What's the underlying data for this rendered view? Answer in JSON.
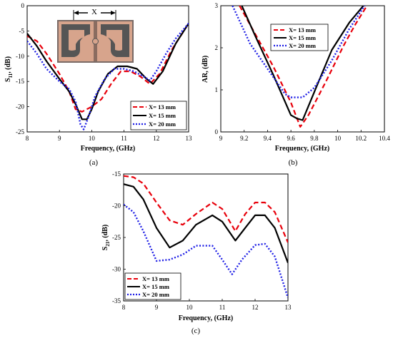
{
  "series_styles": [
    {
      "color": "#e8000b",
      "dash": "7,4",
      "width": 2.2
    },
    {
      "color": "#000000",
      "dash": "",
      "width": 2.2
    },
    {
      "color": "#1f1fe6",
      "dash": "2,2.4",
      "width": 2.4
    }
  ],
  "inset_label": "X",
  "chart_data": [
    {
      "type": "line",
      "panel": "a",
      "caption": "(a)",
      "xlabel": "Frequency, (GHz)",
      "ylabel_main": "S",
      "ylabel_sub": "11",
      "ylabel_tail": ", (dB)",
      "xlim": [
        8,
        13
      ],
      "ylim": [
        -25,
        0
      ],
      "xticks": [
        "8",
        "9",
        "10",
        "11",
        "12",
        "13"
      ],
      "yticks": [
        "-25",
        "-20",
        "-15",
        "-10",
        "-5",
        "0"
      ],
      "legend_position": "bottom-right",
      "series": [
        {
          "name": "X= 13 mm",
          "x": [
            8,
            8.3,
            8.6,
            9.0,
            9.3,
            9.5,
            9.7,
            10.0,
            10.3,
            10.6,
            10.9,
            11.2,
            11.5,
            11.8,
            12.1,
            12.5,
            13.0
          ],
          "y": [
            -6,
            -7,
            -9.5,
            -13.5,
            -17,
            -20.5,
            -21,
            -20,
            -18.5,
            -15.5,
            -13,
            -13,
            -14,
            -15.5,
            -13.5,
            -8.5,
            -3.5
          ]
        },
        {
          "name": "X= 15 mm",
          "x": [
            8,
            8.3,
            8.6,
            9.0,
            9.3,
            9.5,
            9.7,
            9.85,
            10.0,
            10.2,
            10.5,
            10.8,
            11.1,
            11.4,
            11.7,
            11.9,
            12.2,
            12.6,
            13.0
          ],
          "y": [
            -5.5,
            -8,
            -11,
            -14.5,
            -17,
            -19.5,
            -22.5,
            -22.5,
            -20.5,
            -17,
            -13.5,
            -12,
            -12,
            -12.5,
            -14.5,
            -15.5,
            -13,
            -7.5,
            -3.5
          ]
        },
        {
          "name": "X= 20 mm",
          "x": [
            8,
            8.3,
            8.6,
            9.0,
            9.3,
            9.5,
            9.65,
            9.75,
            9.9,
            10.1,
            10.4,
            10.7,
            11.0,
            11.3,
            11.6,
            11.8,
            12.0,
            12.3,
            12.6,
            13.0
          ],
          "y": [
            -7,
            -9.5,
            -12.5,
            -15,
            -16.5,
            -19,
            -23.5,
            -24.5,
            -22,
            -18,
            -14.5,
            -12.5,
            -12.5,
            -13,
            -14,
            -14.8,
            -13,
            -9.5,
            -6.5,
            -3.5
          ]
        }
      ]
    },
    {
      "type": "line",
      "panel": "b",
      "caption": "(b)",
      "xlabel": "Frequency, (GHz)",
      "ylabel": "AR, (dB)",
      "xlim": [
        9,
        10.4
      ],
      "ylim": [
        0,
        3
      ],
      "xticks": [
        "9",
        "9.2",
        "9.4",
        "9.6",
        "9.8",
        "10",
        "10.2",
        "10.4"
      ],
      "yticks": [
        "0",
        "1",
        "2",
        "3"
      ],
      "legend_position": "top-right",
      "series": [
        {
          "name": "X= 13 mm",
          "x": [
            9.16,
            9.3,
            9.45,
            9.6,
            9.68,
            9.75,
            9.9,
            10.05,
            10.15,
            10.25
          ],
          "y": [
            3,
            2.3,
            1.55,
            0.7,
            0.12,
            0.4,
            1.2,
            2.05,
            2.55,
            3
          ]
        },
        {
          "name": "X= 15 mm",
          "x": [
            9.18,
            9.3,
            9.45,
            9.6,
            9.65,
            9.7,
            9.8,
            9.95,
            10.1,
            10.22
          ],
          "y": [
            3,
            2.25,
            1.35,
            0.4,
            0.32,
            0.28,
            0.95,
            1.95,
            2.6,
            3
          ]
        },
        {
          "name": "X= 20 mm",
          "x": [
            9.1,
            9.25,
            9.4,
            9.55,
            9.6,
            9.7,
            9.8,
            9.95,
            10.1,
            10.23
          ],
          "y": [
            3,
            2.1,
            1.5,
            0.9,
            0.82,
            0.82,
            1.05,
            1.7,
            2.45,
            3
          ]
        }
      ]
    },
    {
      "type": "line",
      "panel": "c",
      "caption": "(c)",
      "xlabel": "Frequency, (GHz)",
      "ylabel_main": "S",
      "ylabel_sub": "21",
      "ylabel_tail": ", (dB)",
      "xlim": [
        8,
        13
      ],
      "ylim": [
        -35,
        -15
      ],
      "xticks": [
        "8",
        "9",
        "10",
        "11",
        "12",
        "13"
      ],
      "yticks": [
        "-35",
        "-30",
        "-25",
        "-20",
        "-15"
      ],
      "legend_position": "bottom-left",
      "series": [
        {
          "name": "X= 13 mm",
          "x": [
            8,
            8.3,
            8.6,
            9.0,
            9.4,
            9.8,
            10.2,
            10.7,
            11.0,
            11.4,
            11.7,
            12.0,
            12.3,
            12.6,
            13.0
          ],
          "y": [
            -15.3,
            -15.5,
            -16.5,
            -19.5,
            -22.3,
            -23,
            -21.3,
            -19.5,
            -20.5,
            -24,
            -21.3,
            -19.5,
            -19.5,
            -21,
            -25.8
          ]
        },
        {
          "name": "X= 15 mm",
          "x": [
            8,
            8.3,
            8.6,
            9.0,
            9.4,
            9.8,
            10.2,
            10.7,
            11.0,
            11.4,
            11.7,
            12.0,
            12.3,
            12.6,
            13.0
          ],
          "y": [
            -16.6,
            -17,
            -19,
            -23.5,
            -26.6,
            -25.5,
            -23,
            -21.5,
            -22.5,
            -25.5,
            -23.5,
            -21.5,
            -21.5,
            -23.5,
            -29
          ]
        },
        {
          "name": "X= 20 mm",
          "x": [
            8,
            8.3,
            8.6,
            9.0,
            9.4,
            9.8,
            10.2,
            10.7,
            11.0,
            11.3,
            11.6,
            12.0,
            12.3,
            12.6,
            13.0
          ],
          "y": [
            -19.8,
            -21,
            -24,
            -28.7,
            -28.5,
            -27.7,
            -26.3,
            -26.3,
            -28.5,
            -30.8,
            -28.5,
            -26.2,
            -26,
            -28,
            -34.5
          ]
        }
      ]
    }
  ]
}
